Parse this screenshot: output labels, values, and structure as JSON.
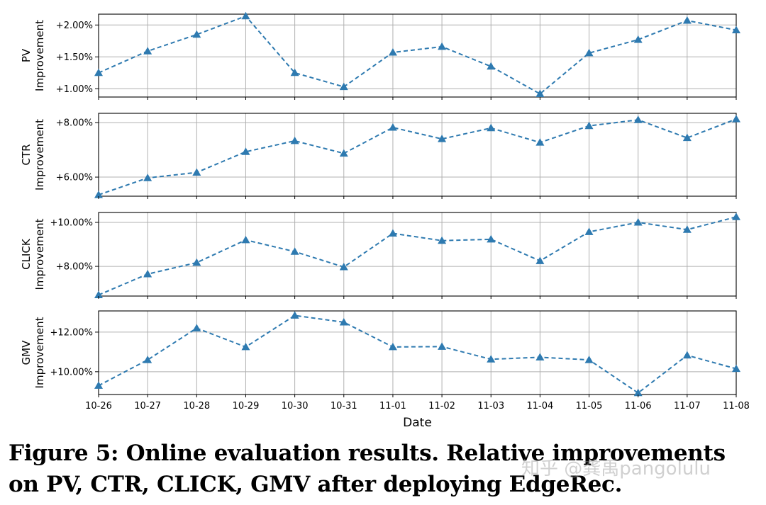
{
  "chart_data": [
    {
      "type": "line",
      "ylabel": [
        "PV",
        "Improvement"
      ],
      "categories": [
        "10-26",
        "10-27",
        "10-28",
        "10-29",
        "10-30",
        "10-31",
        "11-01",
        "11-02",
        "11-03",
        "11-04",
        "11-05",
        "11-06",
        "11-07",
        "11-08"
      ],
      "values": [
        1.25,
        1.59,
        1.85,
        2.14,
        1.25,
        1.03,
        1.57,
        1.66,
        1.35,
        0.92,
        1.56,
        1.77,
        2.07,
        1.92
      ],
      "ylim": [
        0.87,
        2.17
      ],
      "yticks": [
        1.0,
        1.5,
        2.0
      ],
      "ytick_labels": [
        "+1.00%",
        "+1.50%",
        "+2.00%"
      ],
      "grid": true
    },
    {
      "type": "line",
      "ylabel": [
        "CTR",
        "Improvement"
      ],
      "categories": [
        "10-26",
        "10-27",
        "10-28",
        "10-29",
        "10-30",
        "10-31",
        "11-01",
        "11-02",
        "11-03",
        "11-04",
        "11-05",
        "11-06",
        "11-07",
        "11-08"
      ],
      "values": [
        5.35,
        5.97,
        6.17,
        6.93,
        7.33,
        6.87,
        7.82,
        7.4,
        7.8,
        7.27,
        7.88,
        8.1,
        7.44,
        8.13
      ],
      "ylim": [
        5.3,
        8.34
      ],
      "yticks": [
        6.0,
        8.0
      ],
      "ytick_labels": [
        "+6.00%",
        "+8.00%"
      ],
      "grid": true
    },
    {
      "type": "line",
      "ylabel": [
        "CLICK",
        "Improvement"
      ],
      "categories": [
        "10-26",
        "10-27",
        "10-28",
        "10-29",
        "10-30",
        "10-31",
        "11-01",
        "11-02",
        "11-03",
        "11-04",
        "11-05",
        "11-06",
        "11-07",
        "11-08"
      ],
      "values": [
        6.7,
        7.65,
        8.17,
        9.2,
        8.67,
        7.97,
        9.5,
        9.17,
        9.23,
        8.25,
        9.57,
        10.0,
        9.67,
        10.25
      ],
      "ylim": [
        6.65,
        10.45
      ],
      "yticks": [
        8.0,
        10.0
      ],
      "ytick_labels": [
        "+8.00%",
        "+10.00%"
      ],
      "grid": true
    },
    {
      "type": "line",
      "ylabel": [
        "GMV",
        "Improvement"
      ],
      "categories": [
        "10-26",
        "10-27",
        "10-28",
        "10-29",
        "10-30",
        "10-31",
        "11-01",
        "11-02",
        "11-03",
        "11-04",
        "11-05",
        "11-06",
        "11-07",
        "11-08"
      ],
      "values": [
        9.3,
        10.6,
        12.2,
        11.25,
        12.84,
        12.5,
        11.25,
        11.27,
        10.63,
        10.73,
        10.6,
        8.93,
        10.83,
        10.15
      ],
      "ylim": [
        8.85,
        13.07
      ],
      "yticks": [
        10.0,
        12.0
      ],
      "ytick_labels": [
        "+10.00%",
        "+12.00%"
      ],
      "grid": true
    }
  ],
  "xlabel": "Date",
  "series_color": "#2e7ab0",
  "caption": {
    "line1": "Figure 5: Online evaluation results. Relative improvements",
    "line2": "on PV, CTR, CLICK, GMV after deploying EdgeRec."
  },
  "watermark": "知乎 @龚禹pangolulu"
}
